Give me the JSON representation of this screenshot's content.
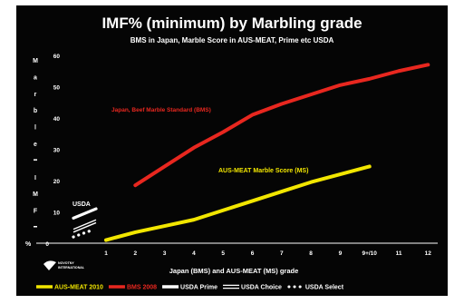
{
  "chart_data": {
    "type": "line",
    "title": "IMF% (minimum) by Marbling grade",
    "subtitle": "BMS in Japan, Marble Score in AUS-MEAT,  Prime etc USDA",
    "xlabel": "Japan (BMS) and AUS-MEAT (MS) grade",
    "ylabel_letters": [
      "M",
      "a",
      "r",
      "b",
      "l",
      "e",
      "",
      "I",
      "M",
      "F",
      ""
    ],
    "ylabel_percent_sign": "%",
    "categories": [
      "1",
      "2",
      "3",
      "4",
      "5",
      "6",
      "7",
      "8",
      "9",
      "9+/10",
      "11",
      "12"
    ],
    "y_ticks": [
      "0",
      "10",
      "20",
      "30",
      "40",
      "50",
      "60"
    ],
    "ylim": [
      0,
      60
    ],
    "grid": false,
    "series": [
      {
        "name": "AUS-MEAT 2010",
        "color": "#f2e600",
        "x": [
          "1",
          "2",
          "3",
          "4",
          "5",
          "6",
          "7",
          "8",
          "9",
          "9+/10"
        ],
        "values": [
          1,
          3.5,
          5.5,
          7.5,
          10.5,
          13.5,
          16.5,
          19.5,
          22,
          24.5
        ]
      },
      {
        "name": "BMS 2008",
        "color": "#e8271f",
        "x": [
          "2",
          "3",
          "4",
          "5",
          "6",
          "7",
          "8",
          "9",
          "9+/10",
          "11",
          "12"
        ],
        "values": [
          18.5,
          24.5,
          30.5,
          35.5,
          41,
          44.5,
          47.5,
          50.5,
          52.5,
          55,
          57
        ]
      }
    ],
    "annotations": {
      "bms": "Japan, Beef Marble Standard (BMS)",
      "aus": "AUS-MEAT Marble Score (MS)",
      "usda": "USDA"
    },
    "legend": {
      "placement": "bottom",
      "items": [
        {
          "label": "AUS-MEAT 2010",
          "color": "#f2e600",
          "style": "solid"
        },
        {
          "label": "BMS 2008",
          "color": "#e8271f",
          "style": "solid"
        },
        {
          "label": "USDA Prime",
          "color": "#ffffff",
          "style": "solid"
        },
        {
          "label": "USDA Choice",
          "color": "#ffffff",
          "style": "double"
        },
        {
          "label": "USDA Select",
          "color": "#ffffff",
          "style": "dotted"
        }
      ]
    },
    "usda_ranges": {
      "prime": [
        8,
        11
      ],
      "choice": [
        4,
        7
      ],
      "select": [
        2,
        4
      ]
    }
  },
  "logo": {
    "line1": "NOVOTNY",
    "line2": "INTERNATIONAL"
  }
}
